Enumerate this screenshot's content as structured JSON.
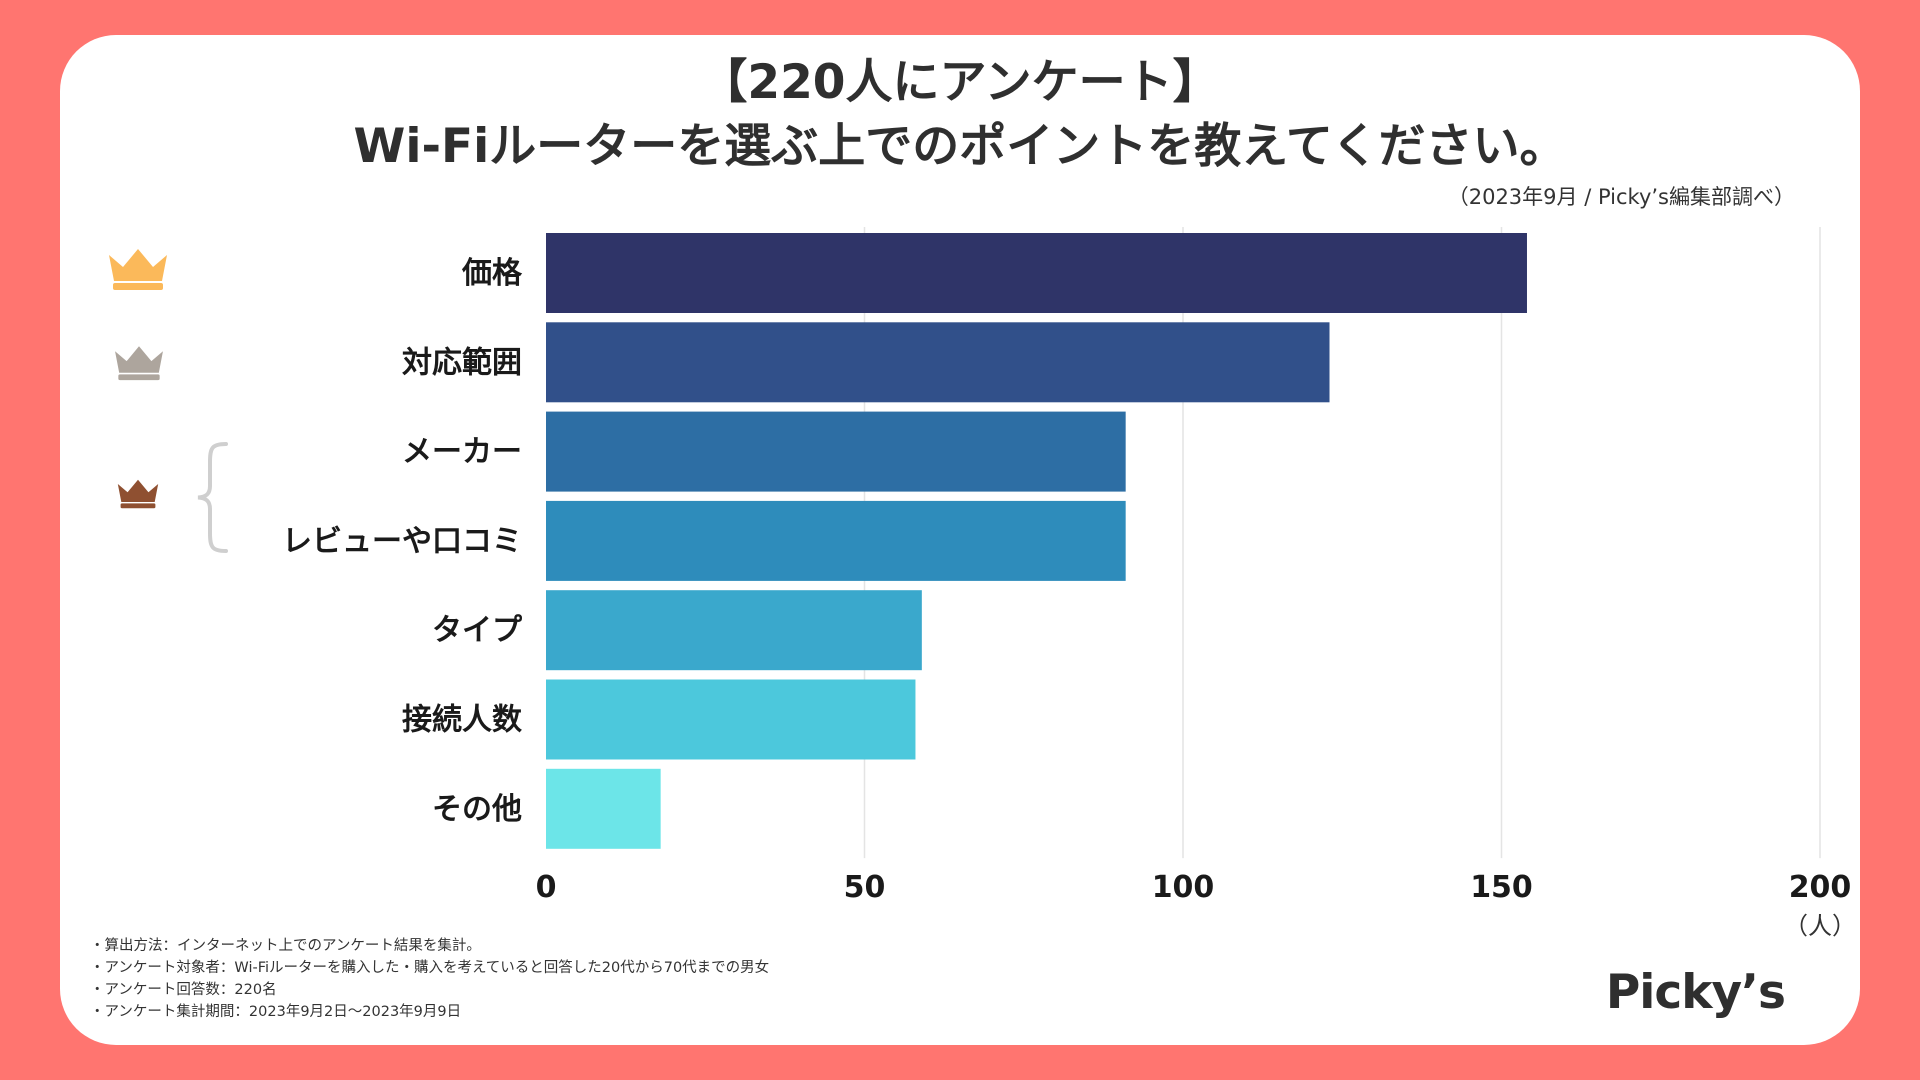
{
  "header": {
    "title_line1": "【220人にアンケート】",
    "title_line2": "Wi-Fiルーターを選ぶ上でのポイントを教えてください。",
    "source": "（2023年9月 / Picky’s編集部調べ）"
  },
  "ranks": [
    {
      "name": "gold-crown-icon",
      "color": "#fbb95a"
    },
    {
      "name": "silver-crown-icon",
      "color": "#ada59d"
    },
    {
      "name": "bronze-crown-icon",
      "color": "#8f5031"
    }
  ],
  "chart_data": {
    "type": "bar",
    "orientation": "horizontal",
    "categories": [
      "価格",
      "対応範囲",
      "メーカー",
      "レビューや口コミ",
      "タイプ",
      "接続人数",
      "その他"
    ],
    "values": [
      154,
      123,
      91,
      91,
      59,
      58,
      18
    ],
    "colors": [
      "#2f3468",
      "#31508a",
      "#2d6ea4",
      "#2e8cbb",
      "#3aa8cc",
      "#4cc8dc",
      "#6ce5e8"
    ],
    "xlim": [
      0,
      200
    ],
    "xticks": [
      0,
      50,
      100,
      150,
      200
    ],
    "xticklabels": [
      "0",
      "50",
      "100",
      "150",
      "200"
    ],
    "unit_label": "（人）",
    "grid": true
  },
  "footer": {
    "notes": [
      "・算出方法：インターネット上でのアンケート結果を集計。",
      "・アンケート対象者：Wi-Fiルーターを購入した・購入を考えていると回答した20代から70代までの男女",
      "・アンケート回答数：220名",
      "・アンケート集計期間：2023年9月2日〜2023年9月9日"
    ],
    "logo": "Picky’s"
  }
}
